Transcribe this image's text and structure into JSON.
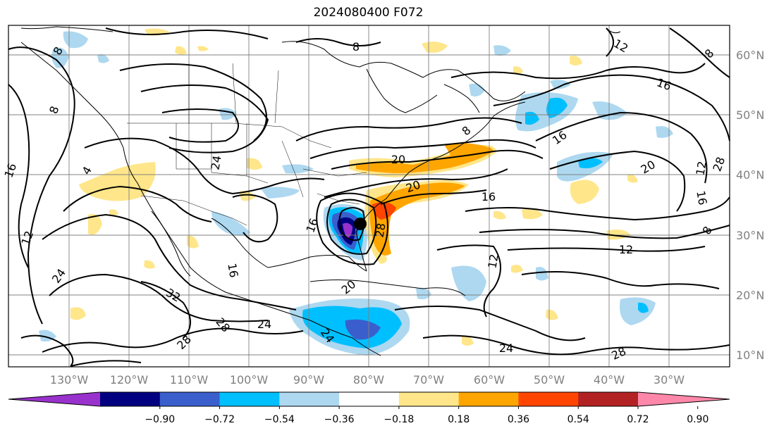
{
  "title": "2024080400 F072",
  "lat_labels": [
    "60°N",
    "50°N",
    "40°N",
    "30°N",
    "20°N",
    "10°N"
  ],
  "lon_labels": [
    "130°W",
    "120°W",
    "110°W",
    "100°W",
    "90°W",
    "80°W",
    "70°W",
    "60°W",
    "50°W",
    "40°W",
    "30°W"
  ],
  "contour_labels": [
    "8",
    "8",
    "8",
    "8",
    "12",
    "12",
    "12",
    "12",
    "12",
    "16",
    "16",
    "16",
    "16",
    "16",
    "16",
    "20",
    "20",
    "20",
    "20",
    "24",
    "24",
    "24",
    "24",
    "24",
    "28",
    "28",
    "28",
    "28",
    "28",
    "32",
    "4",
    "8",
    "16",
    "8"
  ],
  "colorbar": {
    "ticks": [
      "−0.90",
      "−0.72",
      "−0.54",
      "−0.36",
      "−0.18",
      "0.18",
      "0.36",
      "0.54",
      "0.72",
      "0.90"
    ],
    "colors": [
      "#9932cc",
      "#000080",
      "#3a5fcd",
      "#00bfff",
      "#add8f0",
      "#ffffff",
      "#ffe68a",
      "#ffa500",
      "#ff4500",
      "#b22222",
      "#ff88aa"
    ]
  },
  "colors": {
    "grid": "#808080",
    "contour": "#000000",
    "coast": "#000000"
  }
}
